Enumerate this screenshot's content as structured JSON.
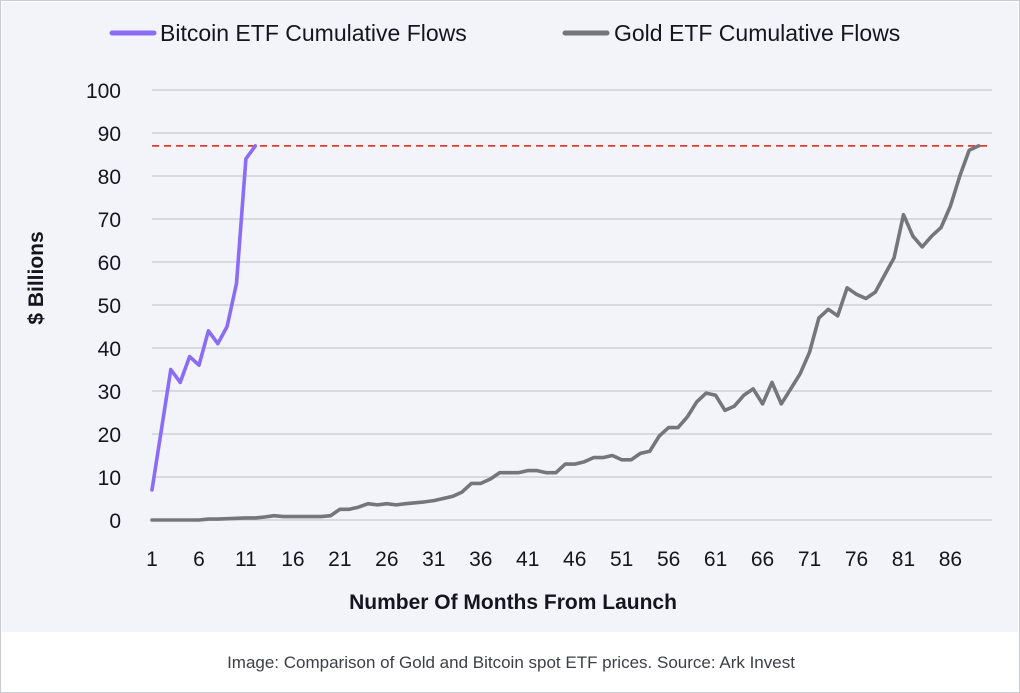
{
  "chart_data": {
    "type": "line",
    "title": "",
    "xlabel": "Number Of Months From Launch",
    "ylabel": "$ Billions",
    "xlim": [
      1,
      90
    ],
    "ylim": [
      0,
      100
    ],
    "x_ticks": [
      1,
      6,
      11,
      16,
      21,
      26,
      31,
      36,
      41,
      46,
      51,
      56,
      61,
      66,
      71,
      76,
      81,
      86
    ],
    "y_ticks": [
      0,
      10,
      20,
      30,
      40,
      50,
      60,
      70,
      80,
      90,
      100
    ],
    "grid": "horizontal",
    "legend_position": "top",
    "reference_line": {
      "y": 87,
      "style": "dashed",
      "color": "#e53935"
    },
    "series": [
      {
        "name": "Bitcoin ETF Cumulative Flows",
        "color": "#8a6cf7",
        "x": [
          1,
          2,
          3,
          4,
          5,
          6,
          7,
          8,
          9,
          10,
          11,
          12
        ],
        "y": [
          7,
          21,
          35,
          32,
          38,
          36,
          44,
          41,
          45,
          55,
          84,
          87
        ]
      },
      {
        "name": "Gold ETF Cumulative Flows",
        "color": "#75767c",
        "x": [
          1,
          2,
          3,
          4,
          5,
          6,
          7,
          8,
          9,
          10,
          11,
          12,
          13,
          14,
          15,
          16,
          17,
          18,
          19,
          20,
          21,
          22,
          23,
          24,
          25,
          26,
          27,
          28,
          29,
          30,
          31,
          32,
          33,
          34,
          35,
          36,
          37,
          38,
          39,
          40,
          41,
          42,
          43,
          44,
          45,
          46,
          47,
          48,
          49,
          50,
          51,
          52,
          53,
          54,
          55,
          56,
          57,
          58,
          59,
          60,
          61,
          62,
          63,
          64,
          65,
          66,
          67,
          68,
          69,
          70,
          71,
          72,
          73,
          74,
          75,
          76,
          77,
          78,
          79,
          80,
          81,
          82,
          83,
          84,
          85,
          86,
          87,
          88,
          89
        ],
        "y": [
          0,
          0,
          0,
          0,
          0,
          0,
          0.2,
          0.2,
          0.3,
          0.4,
          0.5,
          0.5,
          0.7,
          1,
          0.8,
          0.8,
          0.8,
          0.8,
          0.8,
          1,
          2.5,
          2.5,
          3,
          3.8,
          3.5,
          3.8,
          3.5,
          3.8,
          4,
          4.2,
          4.5,
          5,
          5.5,
          6.5,
          8.5,
          8.5,
          9.5,
          11,
          11,
          11,
          11.5,
          11.5,
          11,
          11,
          13,
          13,
          13.5,
          14.5,
          14.5,
          15,
          14,
          14,
          15.5,
          16,
          19.5,
          21.5,
          21.5,
          24,
          27.5,
          29.5,
          29,
          25.5,
          26.5,
          29,
          30.5,
          27,
          32,
          27,
          30.5,
          34,
          39,
          47,
          49,
          47.5,
          54,
          52.5,
          51.5,
          53,
          57,
          61,
          71,
          66,
          63.5,
          66,
          68,
          73,
          80,
          86,
          87
        ]
      }
    ]
  },
  "caption": "Image: Comparison of Gold and Bitcoin spot ETF prices. Source: Ark Invest"
}
